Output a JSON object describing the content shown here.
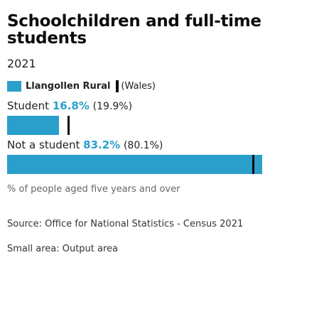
{
  "chart_data": {
    "type": "bar",
    "title": "Schoolchildren and full-time students",
    "subtitle": "2021",
    "legend": {
      "area": "Llangollen Rural",
      "comparison": "(Wales)"
    },
    "categories": [
      "Student",
      "Not a student"
    ],
    "series": [
      {
        "name": "Llangollen Rural",
        "values": [
          16.8,
          83.2
        ],
        "labels": [
          "16.8%",
          "83.2%"
        ]
      },
      {
        "name": "(Wales)",
        "values": [
          19.9,
          80.1
        ],
        "labels": [
          "(19.9%)",
          "(80.1%)"
        ]
      }
    ],
    "xlim": [
      0,
      100
    ],
    "unit_note": "% of people aged five years and over",
    "colors": {
      "area": "#2a9fcb",
      "comparison": "#0b0c0c"
    }
  },
  "source": "Source: Office for National Statistics - Census 2021",
  "small_area": "Small area: Output area"
}
